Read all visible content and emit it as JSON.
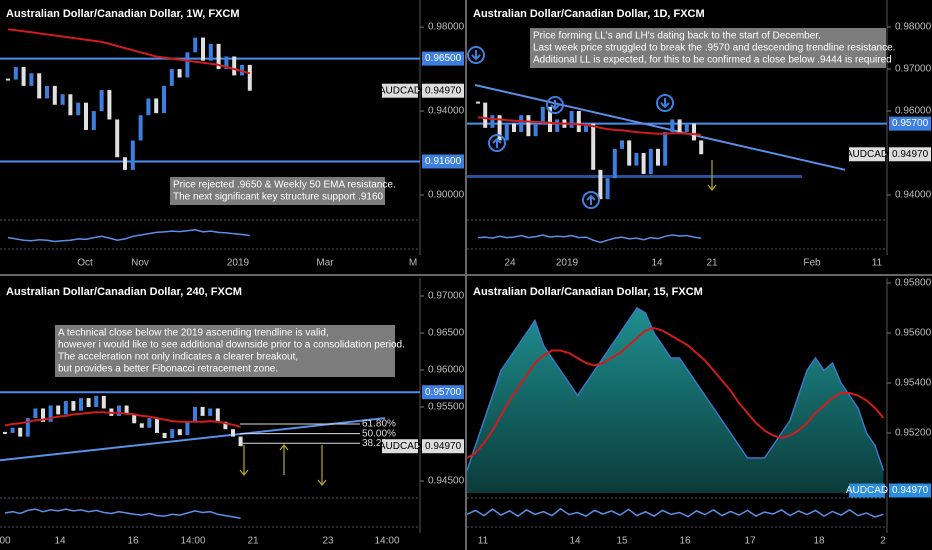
{
  "chart_data": [
    {
      "type": "candlestick",
      "title": "Australian Dollar/Canadian Dollar, 1W, FXCM",
      "ylim": [
        0.8905,
        0.9929
      ],
      "yticks": [
        {
          "value": 0.98,
          "label": "0.98000"
        },
        {
          "value": 0.94,
          "label": "0.94000"
        },
        {
          "value": 0.9,
          "label": "0.90000"
        }
      ],
      "xlabels": [
        "Oct",
        "Nov",
        "2019",
        "Mar",
        "M"
      ],
      "closes": [
        0.955,
        0.961,
        0.952,
        0.958,
        0.946,
        0.952,
        0.943,
        0.948,
        0.938,
        0.944,
        0.931,
        0.94,
        0.95,
        0.936,
        0.918,
        0.912,
        0.926,
        0.938,
        0.946,
        0.939,
        0.952,
        0.96,
        0.956,
        0.968,
        0.975,
        0.964,
        0.972,
        0.96,
        0.966,
        0.957,
        0.962,
        0.9497
      ],
      "ema": [
        0.979,
        0.9785,
        0.978,
        0.9775,
        0.977,
        0.9765,
        0.976,
        0.9755,
        0.975,
        0.9745,
        0.974,
        0.9735,
        0.973,
        0.972,
        0.971,
        0.97,
        0.969,
        0.968,
        0.967,
        0.966,
        0.9655,
        0.965,
        0.9645,
        0.964,
        0.9635,
        0.963,
        0.9625,
        0.962,
        0.961,
        0.96,
        0.959,
        0.958
      ],
      "oscillator": [
        40,
        35,
        30,
        28,
        32,
        30,
        25,
        28,
        30,
        35,
        33,
        40,
        45,
        38,
        30,
        35,
        45,
        50,
        55,
        60,
        62,
        65,
        63,
        66,
        70,
        62,
        65,
        60,
        58,
        55,
        52,
        48
      ],
      "osc_ylim": [
        0,
        100
      ],
      "levels": [
        {
          "value": 0.965,
          "label": "0.96500"
        },
        {
          "value": 0.916,
          "label": "0.91600"
        }
      ],
      "last": {
        "symbol": "AUDCAD",
        "value": 0.9497,
        "label": "0.94970"
      },
      "annotation": [
        "Price rejected .9650 & Weekly 50 EMA resistance.",
        "The next significant key structure support .9160"
      ]
    },
    {
      "type": "candlestick",
      "title": "Australian Dollar/Canadian Dollar, 1D, FXCM",
      "ylim": [
        0.93524,
        0.98643
      ],
      "yticks": [
        {
          "value": 0.98,
          "label": "0.98000"
        },
        {
          "value": 0.97,
          "label": "0.97000"
        },
        {
          "value": 0.96,
          "label": "0.96000"
        },
        {
          "value": 0.94,
          "label": "0.94000"
        }
      ],
      "xlabels": [
        "24",
        "2019",
        "14",
        "21",
        "Feb",
        "11"
      ],
      "closes": [
        0.962,
        0.956,
        0.959,
        0.953,
        0.957,
        0.955,
        0.959,
        0.954,
        0.957,
        0.961,
        0.955,
        0.958,
        0.956,
        0.96,
        0.955,
        0.957,
        0.946,
        0.939,
        0.944,
        0.951,
        0.953,
        0.947,
        0.95,
        0.945,
        0.951,
        0.947,
        0.955,
        0.958,
        0.955,
        0.957,
        0.953,
        0.9497
      ],
      "ema": [
        0.9585,
        0.9583,
        0.9581,
        0.958,
        0.9578,
        0.9577,
        0.9576,
        0.9575,
        0.9574,
        0.9573,
        0.9572,
        0.9571,
        0.957,
        0.9569,
        0.9568,
        0.9567,
        0.9564,
        0.956,
        0.9557,
        0.9555,
        0.9554,
        0.9552,
        0.955,
        0.9548,
        0.9547,
        0.9546,
        0.9546,
        0.9547,
        0.9547,
        0.9546,
        0.9545,
        0.9543
      ],
      "oscillator": [
        40,
        42,
        38,
        45,
        40,
        42,
        48,
        40,
        44,
        50,
        42,
        45,
        43,
        48,
        40,
        42,
        30,
        22,
        30,
        38,
        42,
        35,
        38,
        32,
        40,
        36,
        45,
        50,
        46,
        48,
        42,
        38
      ],
      "osc_ylim": [
        0,
        100
      ],
      "levels": [
        {
          "value": 0.957,
          "label": "0.95700"
        }
      ],
      "support": 0.9444,
      "trendline": [
        0.9662,
        0.946
      ],
      "last": {
        "symbol": "AUDCAD",
        "value": 0.9497,
        "label": "0.94970"
      },
      "annotation": [
        "Price forming LL's and LH's dating back to the start of December.",
        "Last week price struggled to break the .9570 and descending trendline resistance.",
        "Additional LL is expected, for this to be confirmed a close below .9444 is required"
      ]
    },
    {
      "type": "candlestick",
      "title": "Australian Dollar/Canadian Dollar, 240, FXCM",
      "ylim": [
        0.94338,
        0.97243
      ],
      "yticks": [
        {
          "value": 0.97,
          "label": "0.97000"
        },
        {
          "value": 0.965,
          "label": "0.96500"
        },
        {
          "value": 0.96,
          "label": "0.96000"
        },
        {
          "value": 0.955,
          "label": "0.95500"
        },
        {
          "value": 0.945,
          "label": "0.94500"
        }
      ],
      "xlabels": [
        "00",
        "14",
        "16",
        "14:00",
        "21",
        "23",
        "14:00"
      ],
      "closes": [
        0.9515,
        0.9522,
        0.951,
        0.9535,
        0.9548,
        0.953,
        0.9552,
        0.954,
        0.9558,
        0.9545,
        0.9562,
        0.955,
        0.9565,
        0.9548,
        0.9538,
        0.9552,
        0.954,
        0.9528,
        0.9522,
        0.9535,
        0.9515,
        0.9508,
        0.952,
        0.9512,
        0.953,
        0.955,
        0.9538,
        0.9548,
        0.953,
        0.952,
        0.951,
        0.9497
      ],
      "ema": [
        0.9525,
        0.9527,
        0.9528,
        0.953,
        0.9532,
        0.9533,
        0.9535,
        0.9537,
        0.9538,
        0.954,
        0.9541,
        0.9542,
        0.9543,
        0.9543,
        0.9542,
        0.9542,
        0.9541,
        0.954,
        0.9538,
        0.9537,
        0.9535,
        0.9533,
        0.9531,
        0.953,
        0.953,
        0.953,
        0.953,
        0.9531,
        0.953,
        0.9528,
        0.9526,
        0.9523
      ],
      "oscillator": [
        50,
        55,
        48,
        60,
        65,
        55,
        62,
        58,
        65,
        58,
        62,
        55,
        60,
        52,
        48,
        55,
        50,
        45,
        42,
        48,
        40,
        38,
        45,
        42,
        50,
        58,
        52,
        55,
        45,
        40,
        35,
        30
      ],
      "osc_ylim": [
        0,
        100
      ],
      "levels": [
        {
          "value": 0.957,
          "label": "0.95700"
        }
      ],
      "trendline": [
        0.9478,
        0.9535
      ],
      "fib": [
        {
          "value": 0.9527,
          "label": "61.80%"
        },
        {
          "value": 0.9514,
          "label": "50.00%"
        },
        {
          "value": 0.9501,
          "label": "38.20"
        }
      ],
      "last": {
        "symbol": "AUDCAD",
        "value": 0.9497,
        "label": "0.94970"
      },
      "annotation": [
        "A technical close below the 2019 ascending trendline is valid,",
        "however i would like to see additional downside prior to a consolidation period.",
        "The acceleration not only indicates a clearer breakout,",
        "but provides a better Fibonacci retracement zone."
      ]
    },
    {
      "type": "area",
      "title": "Australian Dollar/Canadian Dollar, 15, FXCM",
      "ylim": [
        0.9496,
        0.9582
      ],
      "yticks": [
        {
          "value": 0.958,
          "label": "0.95800"
        },
        {
          "value": 0.956,
          "label": "0.95600"
        },
        {
          "value": 0.954,
          "label": "0.95400"
        },
        {
          "value": 0.952,
          "label": "0.95200"
        }
      ],
      "xlabels": [
        "11",
        "14",
        "15",
        "16",
        "17",
        "18",
        "2"
      ],
      "values": [
        0.9505,
        0.9515,
        0.9525,
        0.9535,
        0.9545,
        0.955,
        0.9555,
        0.956,
        0.9565,
        0.9555,
        0.955,
        0.9545,
        0.954,
        0.9535,
        0.954,
        0.9545,
        0.955,
        0.9555,
        0.956,
        0.9565,
        0.957,
        0.9568,
        0.956,
        0.9555,
        0.955,
        0.955,
        0.9545,
        0.954,
        0.9535,
        0.953,
        0.9525,
        0.952,
        0.9515,
        0.951,
        0.951,
        0.951,
        0.9515,
        0.952,
        0.9525,
        0.9535,
        0.9545,
        0.955,
        0.9545,
        0.9548,
        0.954,
        0.9535,
        0.953,
        0.952,
        0.9515,
        0.9505
      ],
      "ema": [
        0.951,
        0.9512,
        0.9516,
        0.9521,
        0.9527,
        0.9533,
        0.9538,
        0.9543,
        0.9548,
        0.9551,
        0.9553,
        0.9553,
        0.9552,
        0.955,
        0.9548,
        0.9547,
        0.9548,
        0.955,
        0.9552,
        0.9555,
        0.9558,
        0.9561,
        0.9562,
        0.9561,
        0.9559,
        0.9557,
        0.9555,
        0.9552,
        0.9549,
        0.9545,
        0.9541,
        0.9537,
        0.9532,
        0.9528,
        0.9524,
        0.9521,
        0.9519,
        0.9518,
        0.9519,
        0.9521,
        0.9524,
        0.9528,
        0.9531,
        0.9534,
        0.9536,
        0.9536,
        0.9535,
        0.9533,
        0.953,
        0.9526
      ],
      "oscillator": [
        45,
        60,
        40,
        65,
        42,
        58,
        38,
        62,
        45,
        55,
        40,
        66,
        44,
        52,
        38,
        60,
        46,
        58,
        42,
        64,
        40,
        55,
        38,
        60,
        45,
        52,
        36,
        58,
        44,
        62,
        40,
        56,
        42,
        60,
        38,
        54,
        46,
        62,
        40,
        58,
        44,
        60,
        38,
        56,
        42,
        62,
        40,
        50,
        35,
        45
      ],
      "osc_ylim": [
        0,
        100
      ],
      "last": {
        "symbol": "AUDCAD",
        "value": 0.9497,
        "label": "0.94970"
      }
    }
  ]
}
